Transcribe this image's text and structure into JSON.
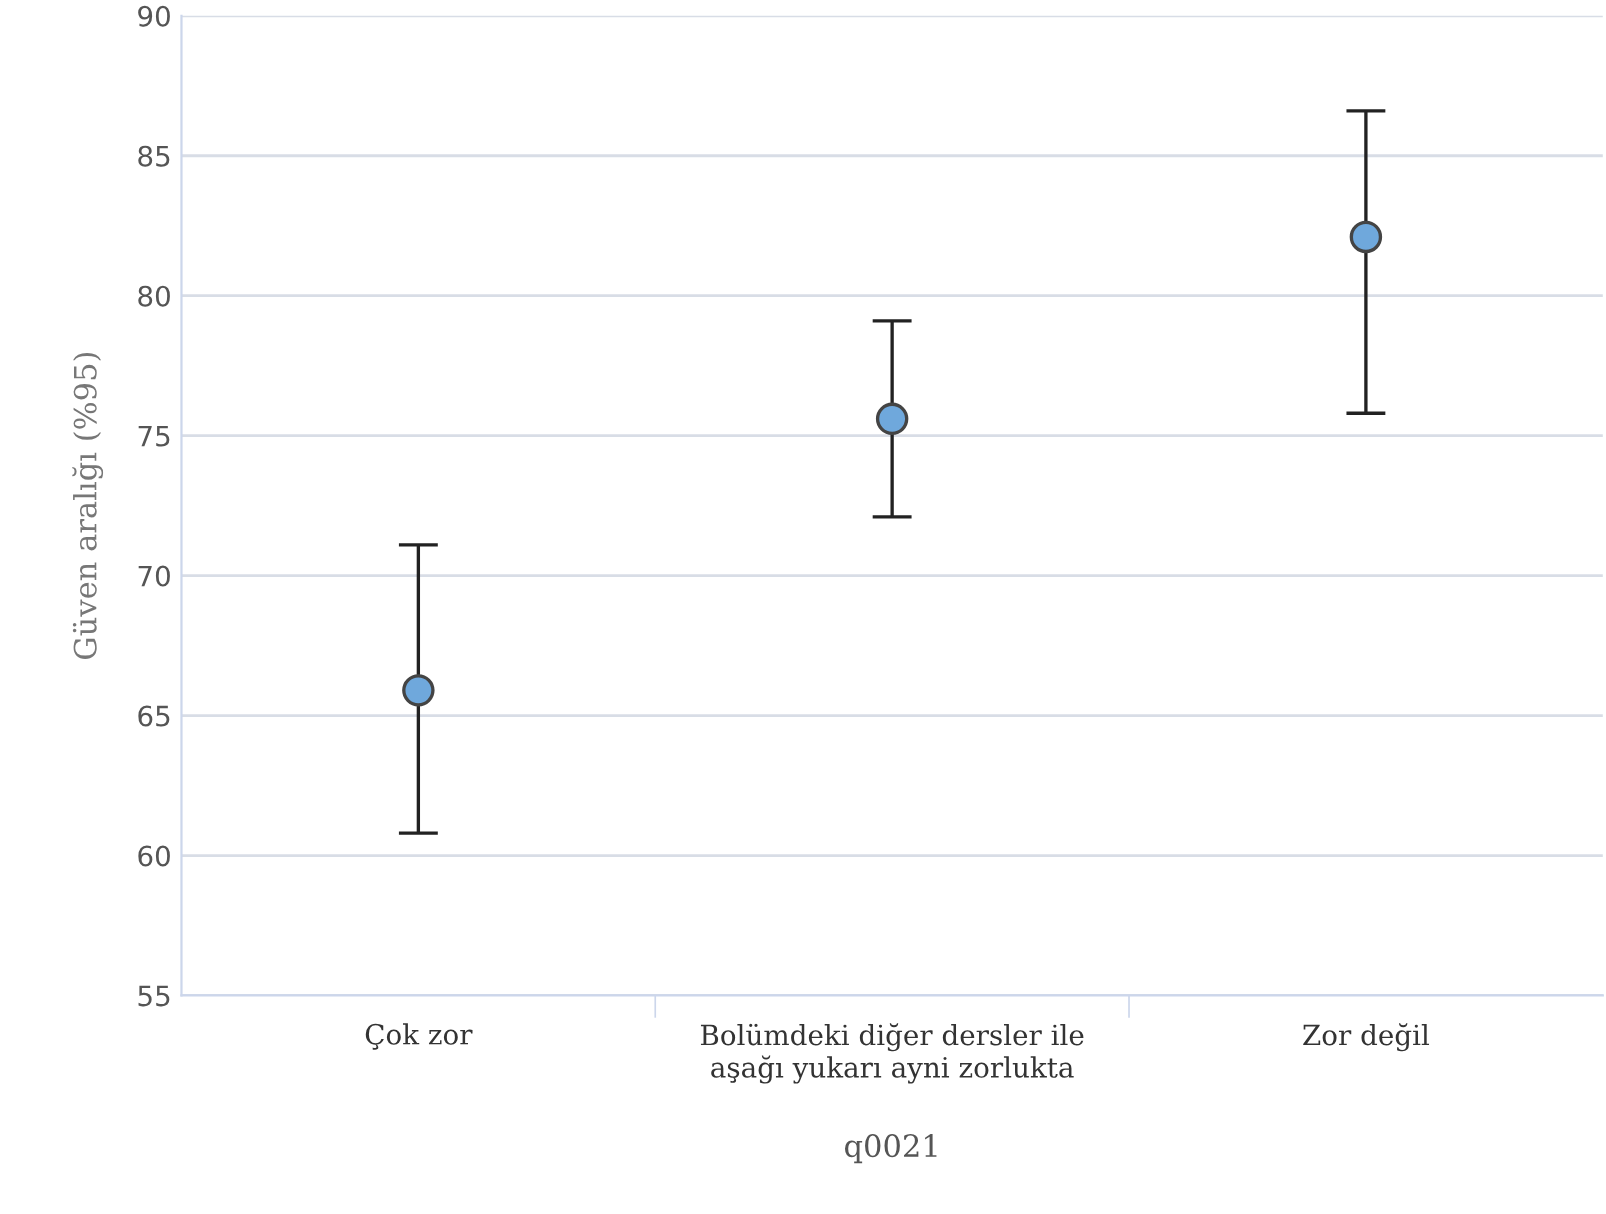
{
  "chart_data": {
    "type": "scatter",
    "xlabel": "q0021",
    "ylabel": "Güven aralığı (%95)",
    "categories": [
      "Çok zor",
      "Bolümdeki diğer dersler ile\naşağı yukarı ayni zorlukta",
      "Zor değil"
    ],
    "series": [
      {
        "color": "#6fa8dc",
        "values": [
          65.9,
          75.6,
          82.1
        ],
        "errors": [
          [
            60.8,
            71.1
          ],
          [
            72.1,
            79.1
          ],
          [
            75.8,
            86.6
          ]
        ]
      }
    ],
    "marker": "circle",
    "ylim": [
      55,
      90
    ],
    "yticks": [
      55,
      60,
      65,
      70,
      75,
      80,
      85,
      90
    ],
    "grid": "y"
  }
}
